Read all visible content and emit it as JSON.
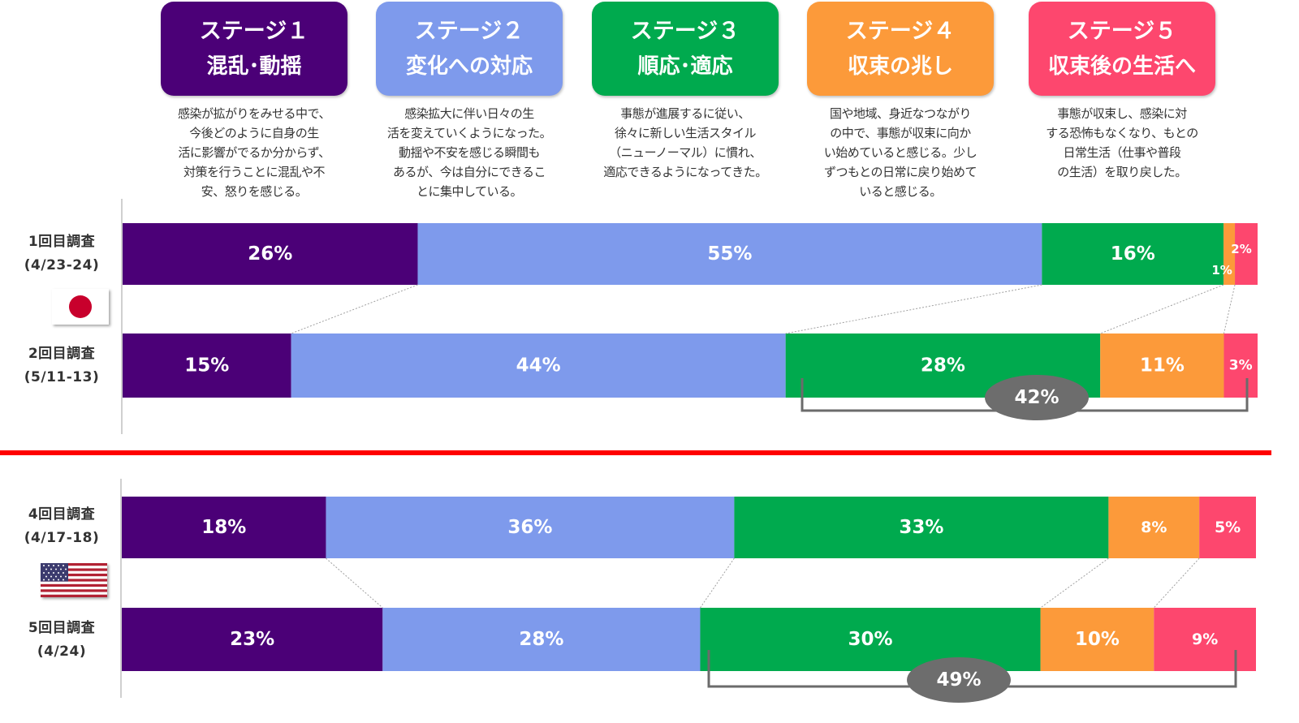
{
  "stages": [
    {
      "title": "ステージ１",
      "subtitle": "混乱･動揺",
      "color": "#4b0077",
      "desc": [
        "感染が拡がりをみせる中で、",
        "今後どのように自身の生",
        "活に影響がでるか分からず、",
        "対策を行うことに混乱や不",
        "安、怒りを感じる。"
      ]
    },
    {
      "title": "ステージ２",
      "subtitle": "変化への対応",
      "color": "#7e9aec",
      "desc": [
        "感染拡大に伴い日々の生",
        "活を変えていくようになった。",
        "動揺や不安を感じる瞬間も",
        "あるが、今は自分にできるこ",
        "とに集中している。"
      ]
    },
    {
      "title": "ステージ３",
      "subtitle": "順応･適応",
      "color": "#00aa4e",
      "desc": [
        "事態が進展するに従い、",
        "徐々に新しい生活スタイル",
        "（ニューノーマル）に慣れ、",
        "適応できるようになってきた。"
      ]
    },
    {
      "title": "ステージ４",
      "subtitle": "収束の兆し",
      "color": "#fc9a3a",
      "desc": [
        "国や地域、身近なつながり",
        "の中で、事態が収束に向か",
        "い始めていると感じる。少し",
        "ずつもとの日常に戻り始めて",
        "いると感じる。"
      ]
    },
    {
      "title": "ステージ５",
      "subtitle": "収束後の生活へ",
      "color": "#fd476e",
      "desc": [
        "事態が収束し、感染に対",
        "する恐怖もなくなり、もとの",
        "日常生活（仕事や普段",
        "の生活）を取り戻した。"
      ]
    }
  ],
  "rows": [
    {
      "name": "1回目調査",
      "date": "(4/23-24)"
    },
    {
      "name": "2回目調査",
      "date": "(5/11-13)"
    },
    {
      "name": "4回目調査",
      "date": "(4/17-18)"
    },
    {
      "name": "5回目調査",
      "date": "(4/24)"
    }
  ],
  "flags": {
    "top": "japan-flag",
    "bottom": "usa-flag"
  },
  "divider_color": "#ff0000",
  "chart_data": {
    "type": "bar",
    "stacked": true,
    "orientation": "horizontal",
    "categories": [
      "1回目調査 (4/23-24)",
      "2回目調査 (5/11-13)",
      "4回目調査 (4/17-18)",
      "5回目調査 (4/24)"
    ],
    "series": [
      {
        "name": "ステージ１",
        "values": [
          26,
          15,
          18,
          23
        ]
      },
      {
        "name": "ステージ２",
        "values": [
          55,
          44,
          36,
          28
        ]
      },
      {
        "name": "ステージ３",
        "values": [
          16,
          28,
          33,
          30
        ]
      },
      {
        "name": "ステージ４",
        "values": [
          1,
          11,
          8,
          10
        ]
      },
      {
        "name": "ステージ５",
        "values": [
          2,
          3,
          5,
          9
        ]
      }
    ],
    "data_labels": [
      [
        "26%",
        "55%",
        "16%",
        "1%",
        "2%"
      ],
      [
        "15%",
        "44%",
        "28%",
        "11%",
        "3%"
      ],
      [
        "18%",
        "36%",
        "33%",
        "8%",
        "5%"
      ],
      [
        "23%",
        "28%",
        "30%",
        "10%",
        "9%"
      ]
    ],
    "bracket_totals": [
      {
        "row": 1,
        "label": "42%"
      },
      {
        "row": 3,
        "label": "49%"
      }
    ]
  }
}
